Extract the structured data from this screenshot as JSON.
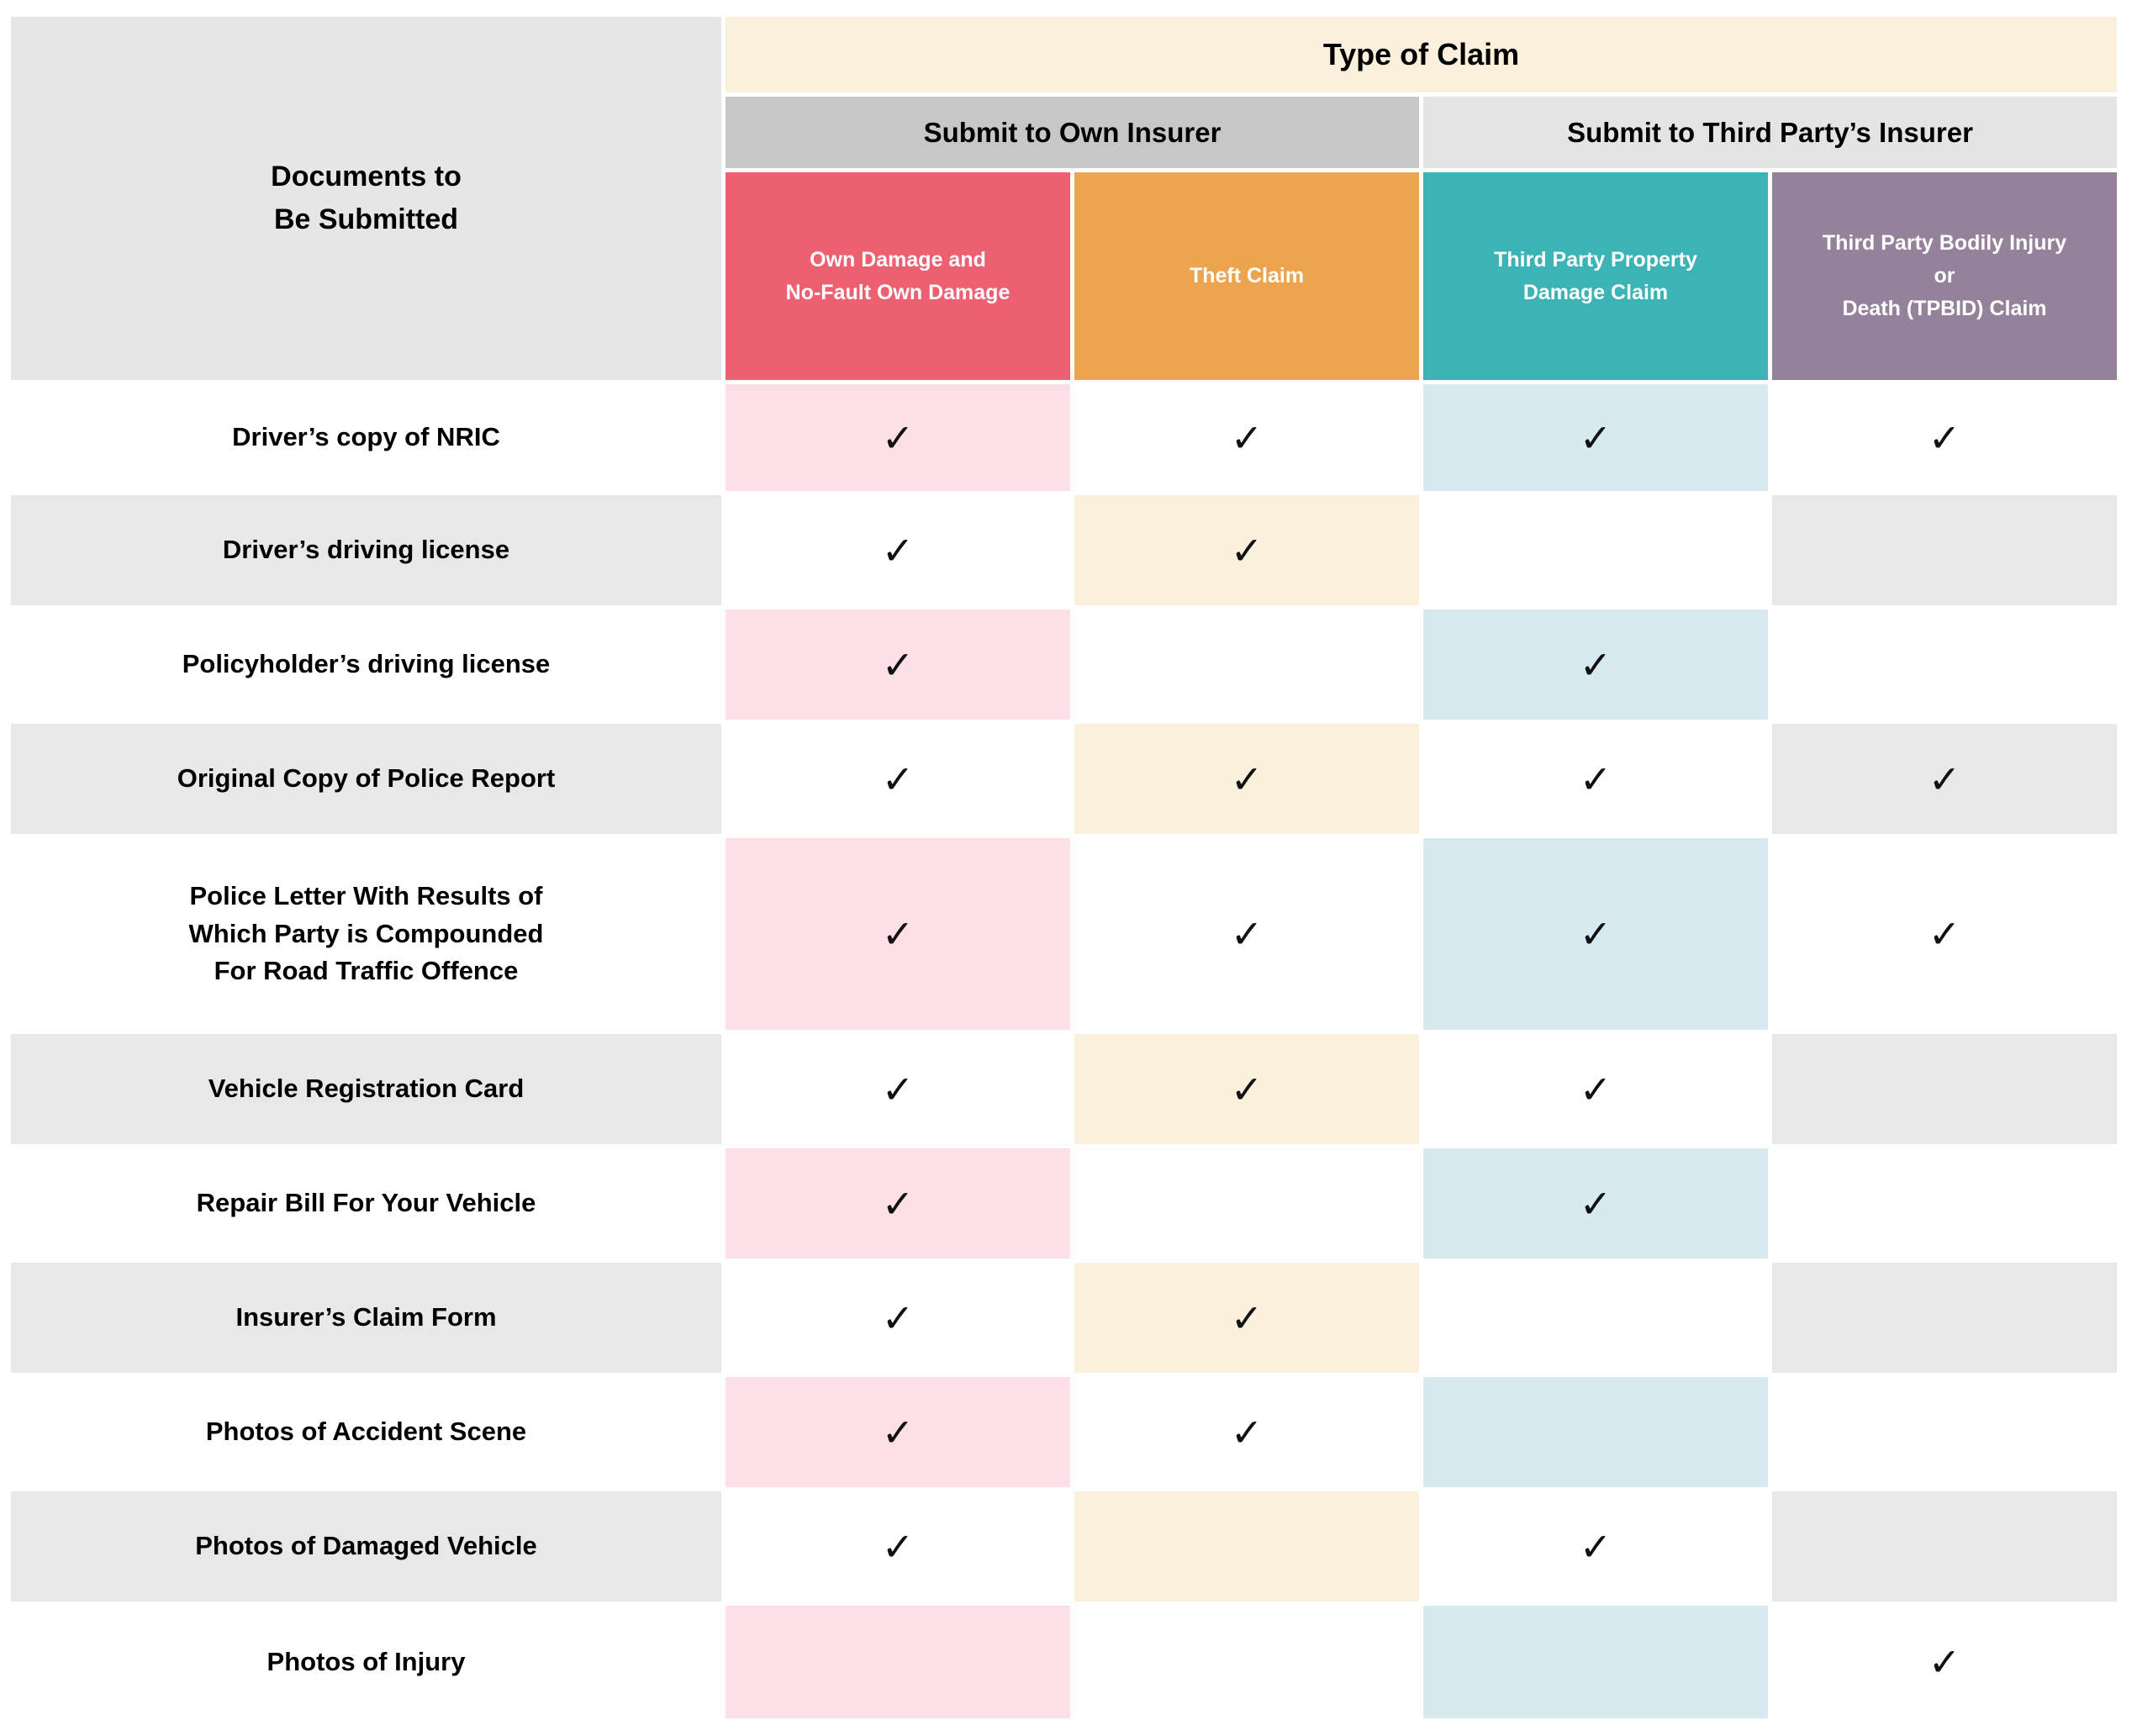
{
  "table": {
    "corner_header": "Documents to\nBe Submitted",
    "top_header": "Type of Claim",
    "group_headers": [
      {
        "label": "Submit to Own Insurer",
        "columns_spanned": 2
      },
      {
        "label": "Submit to Third Party’s Insurer",
        "columns_spanned": 2
      }
    ],
    "columns": [
      {
        "label": "Own Damage and\nNo-Fault Own Damage",
        "color": "#ed6071",
        "tint": "#fce0e5"
      },
      {
        "label": "Theft Claim",
        "color": "#eca44e",
        "tint": "#faf0dc"
      },
      {
        "label": "Third Party Property\nDamage Claim",
        "color": "#3cb4b6",
        "tint": "#d6eaef"
      },
      {
        "label": "Third Party Bodily Injury\nor\nDeath (TPBID) Claim",
        "color": "#94819a",
        "tint": "#e8e8e8"
      }
    ],
    "check_symbol": "✓",
    "rows": [
      {
        "label": "Driver’s copy of NRIC",
        "checks": [
          true,
          true,
          true,
          true
        ]
      },
      {
        "label": "Driver’s driving license",
        "checks": [
          true,
          true,
          false,
          false
        ]
      },
      {
        "label": "Policyholder’s driving license",
        "checks": [
          true,
          false,
          true,
          false
        ]
      },
      {
        "label": "Original Copy of Police Report",
        "checks": [
          true,
          true,
          true,
          true
        ]
      },
      {
        "label": "Police Letter With Results of\nWhich Party is Compounded\nFor Road Traffic Offence",
        "checks": [
          true,
          true,
          true,
          true
        ]
      },
      {
        "label": "Vehicle Registration Card",
        "checks": [
          true,
          true,
          true,
          false
        ]
      },
      {
        "label": "Repair Bill For Your Vehicle",
        "checks": [
          true,
          false,
          true,
          false
        ]
      },
      {
        "label": "Insurer’s Claim Form",
        "checks": [
          true,
          true,
          false,
          false
        ]
      },
      {
        "label": "Photos of Accident Scene",
        "checks": [
          true,
          true,
          false,
          false
        ]
      },
      {
        "label": "Photos of Damaged Vehicle",
        "checks": [
          true,
          false,
          true,
          false
        ]
      },
      {
        "label": "Photos of Injury",
        "checks": [
          false,
          false,
          false,
          true
        ]
      }
    ]
  },
  "palette": {
    "corner_gray": "#e6e6e6",
    "type_of_claim_band": "#faf0dc",
    "own_insurer_band": "#c7c7c7",
    "third_party_band": "#e4e4e4",
    "row_label_alt_gray": "#e8e8e8",
    "check_color": "#111111"
  }
}
